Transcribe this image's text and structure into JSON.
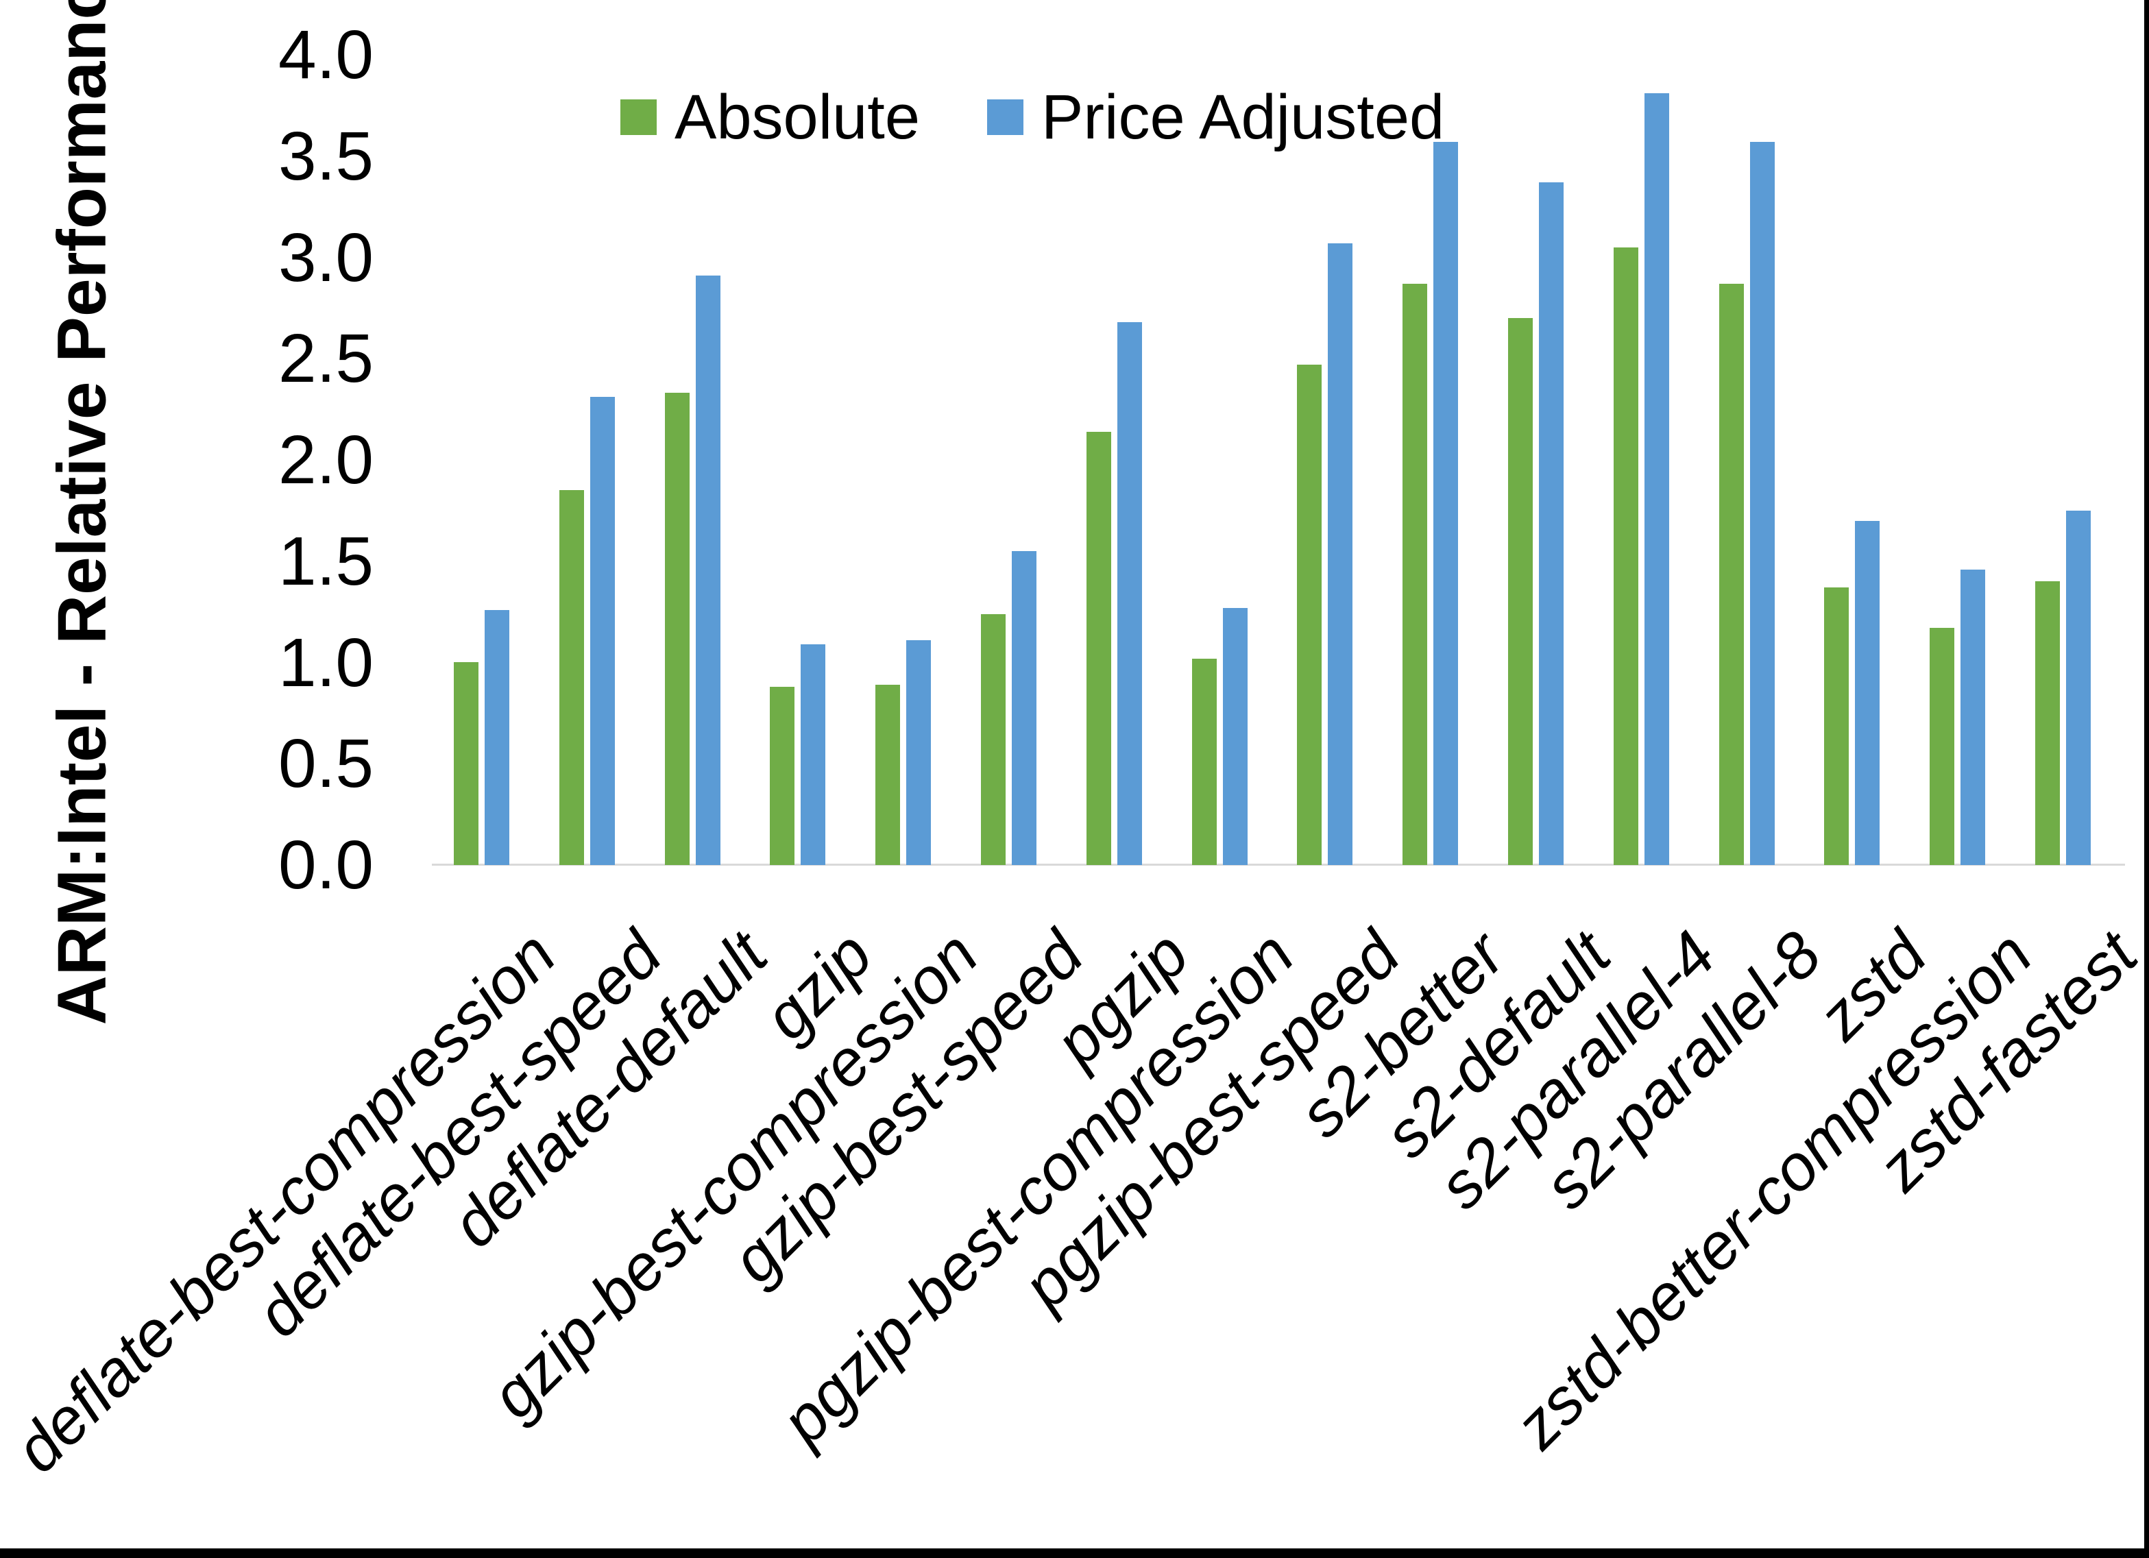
{
  "colors": {
    "series_absolute": "#70AD47",
    "series_price_adjusted": "#5B9BD5",
    "axis_line": "#D9D9D9",
    "text": "#000000",
    "screenshot_border": "#000000"
  },
  "chart_data": {
    "type": "bar",
    "title": "",
    "xlabel": "",
    "ylabel": "ARM:Intel - Relative Performance",
    "ylim": [
      0.0,
      4.0
    ],
    "ytick_step": 0.5,
    "yticks": [
      "0.0",
      "0.5",
      "1.0",
      "1.5",
      "2.0",
      "2.5",
      "3.0",
      "3.5",
      "4.0"
    ],
    "grid": false,
    "legend_position": "top-center",
    "categories": [
      "deflate-best-compression",
      "deflate-best-speed",
      "deflate-default",
      "gzip",
      "gzip-best-compression",
      "gzip-best-speed",
      "pgzip",
      "pgzip-best-compression",
      "pgzip-best-speed",
      "s2-better",
      "s2-default",
      "s2-parallel-4",
      "s2-parallel-8",
      "zstd",
      "zstd-better-compression",
      "zstd-fastest"
    ],
    "series": [
      {
        "name": "Absolute",
        "color": "#70AD47",
        "values": [
          1.0,
          1.85,
          2.33,
          0.88,
          0.89,
          1.24,
          2.14,
          1.02,
          2.47,
          2.87,
          2.7,
          3.05,
          2.87,
          1.37,
          1.17,
          1.4
        ]
      },
      {
        "name": "Price Adjusted",
        "color": "#5B9BD5",
        "values": [
          1.26,
          2.31,
          2.91,
          1.09,
          1.11,
          1.55,
          2.68,
          1.27,
          3.07,
          3.57,
          3.37,
          3.81,
          3.57,
          1.7,
          1.46,
          1.75
        ]
      }
    ]
  }
}
